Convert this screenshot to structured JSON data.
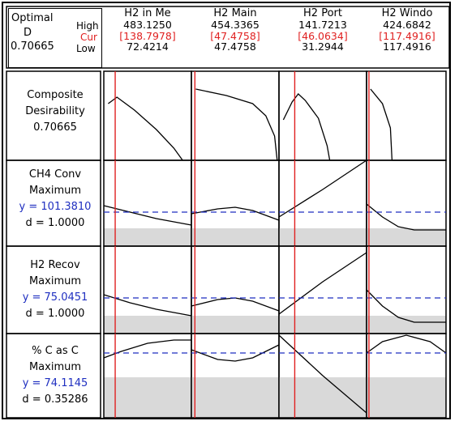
{
  "summary": {
    "title_line1": "Optimal",
    "title_line2": "D",
    "d_value": "0.70665",
    "high_label": "High",
    "cur_label": "Cur",
    "low_label": "Low"
  },
  "columns": [
    {
      "name": "H2 in Me",
      "high": "483.1250",
      "cur": "[138.7978]",
      "low": "72.4214"
    },
    {
      "name": "H2 Main",
      "high": "454.3365",
      "cur": "[47.4758]",
      "low": "47.4758"
    },
    {
      "name": "H2 Port",
      "high": "141.7213",
      "cur": "[46.0634]",
      "low": "31.2944"
    },
    {
      "name": "H2 Windo",
      "high": "424.6842",
      "cur": "[117.4916]",
      "low": "117.4916"
    }
  ],
  "rows": [
    {
      "line1": "Composite",
      "line2": "Desirability",
      "line3": "0.70665",
      "line4": ""
    },
    {
      "line1": "CH4 Conv",
      "line2": "Maximum",
      "line3": "y = 101.3810",
      "line4": "d = 1.0000"
    },
    {
      "line1": "H2 Recov",
      "line2": "Maximum",
      "line3": "y = 75.0451",
      "line4": "d = 1.0000"
    },
    {
      "line1": "% C as C",
      "line2": "Maximum",
      "line3": "y = 74.1145",
      "line4": "d = 0.35286"
    }
  ],
  "colors": {
    "current_line": "#e02020",
    "reference_dash": "#1f2fc0",
    "shade": "#d9d9d9",
    "curve": "#000000"
  },
  "chart_data": {
    "type": "line",
    "note_free": true,
    "factors": [
      "H2 in Me",
      "H2 Main",
      "H2 Port",
      "H2 Windo"
    ],
    "factor_ranges": [
      [
        72.4214,
        483.125
      ],
      [
        47.4758,
        454.3365
      ],
      [
        31.2944,
        141.7213
      ],
      [
        117.4916,
        424.6842
      ]
    ],
    "current_settings": [
      138.7978,
      47.4758,
      46.0634,
      117.4916
    ],
    "responses": [
      {
        "name": "Composite Desirability",
        "current": 0.70665
      },
      {
        "name": "CH4 Conv",
        "goal": "Maximum",
        "y": 101.381,
        "d": 1.0
      },
      {
        "name": "H2 Recov",
        "goal": "Maximum",
        "y": 75.0451,
        "d": 1.0
      },
      {
        "name": "% C as C",
        "goal": "Maximum",
        "y": 74.1145,
        "d": 0.35286
      }
    ]
  }
}
